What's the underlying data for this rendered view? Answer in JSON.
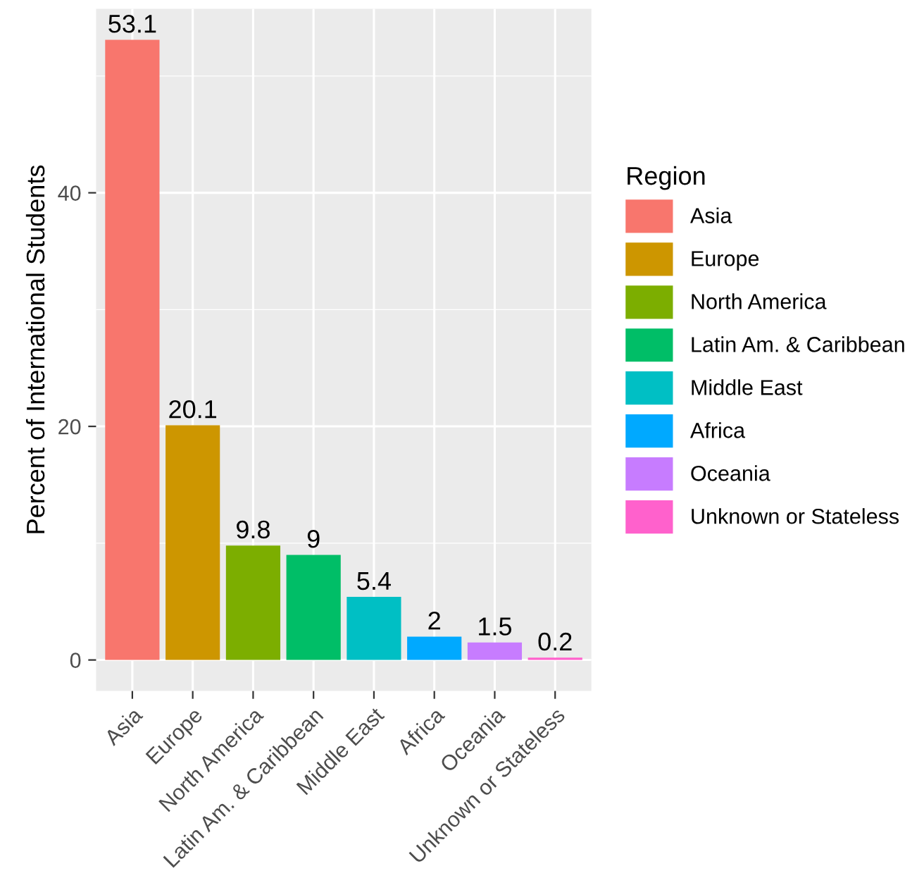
{
  "chart_data": {
    "type": "bar",
    "ylabel": "Percent of International Students",
    "legend_title": "Region",
    "categories": [
      "Asia",
      "Europe",
      "North America",
      "Latin Am. & Caribbean",
      "Middle East",
      "Africa",
      "Oceania",
      "Unknown or Stateless"
    ],
    "series": [
      {
        "name": "Asia",
        "color": "#f8766d",
        "values": [
          53.1,
          null,
          null,
          null,
          null,
          null,
          null,
          null
        ]
      },
      {
        "name": "Europe",
        "color": "#cd9600",
        "values": [
          null,
          20.1,
          null,
          null,
          null,
          null,
          null,
          null
        ]
      },
      {
        "name": "North America",
        "color": "#7cae00",
        "values": [
          null,
          null,
          9.8,
          null,
          null,
          null,
          null,
          null
        ]
      },
      {
        "name": "Latin Am. & Caribbean",
        "color": "#00be67",
        "values": [
          null,
          null,
          null,
          9,
          null,
          null,
          null,
          null
        ]
      },
      {
        "name": "Middle East",
        "color": "#00bfc4",
        "values": [
          null,
          null,
          null,
          null,
          5.4,
          null,
          null,
          null
        ]
      },
      {
        "name": "Africa",
        "color": "#00a9ff",
        "values": [
          null,
          null,
          null,
          null,
          null,
          2,
          null,
          null
        ]
      },
      {
        "name": "Oceania",
        "color": "#c77cff",
        "values": [
          null,
          null,
          null,
          null,
          null,
          null,
          1.5,
          null
        ]
      },
      {
        "name": "Unknown or Stateless",
        "color": "#ff61cc",
        "values": [
          null,
          null,
          null,
          null,
          null,
          null,
          null,
          0.2
        ]
      }
    ],
    "ylim": [
      -2.655,
      55.755
    ],
    "yticks": [
      0,
      20,
      40
    ],
    "grid": true,
    "legend": "right",
    "data_labels": true
  }
}
